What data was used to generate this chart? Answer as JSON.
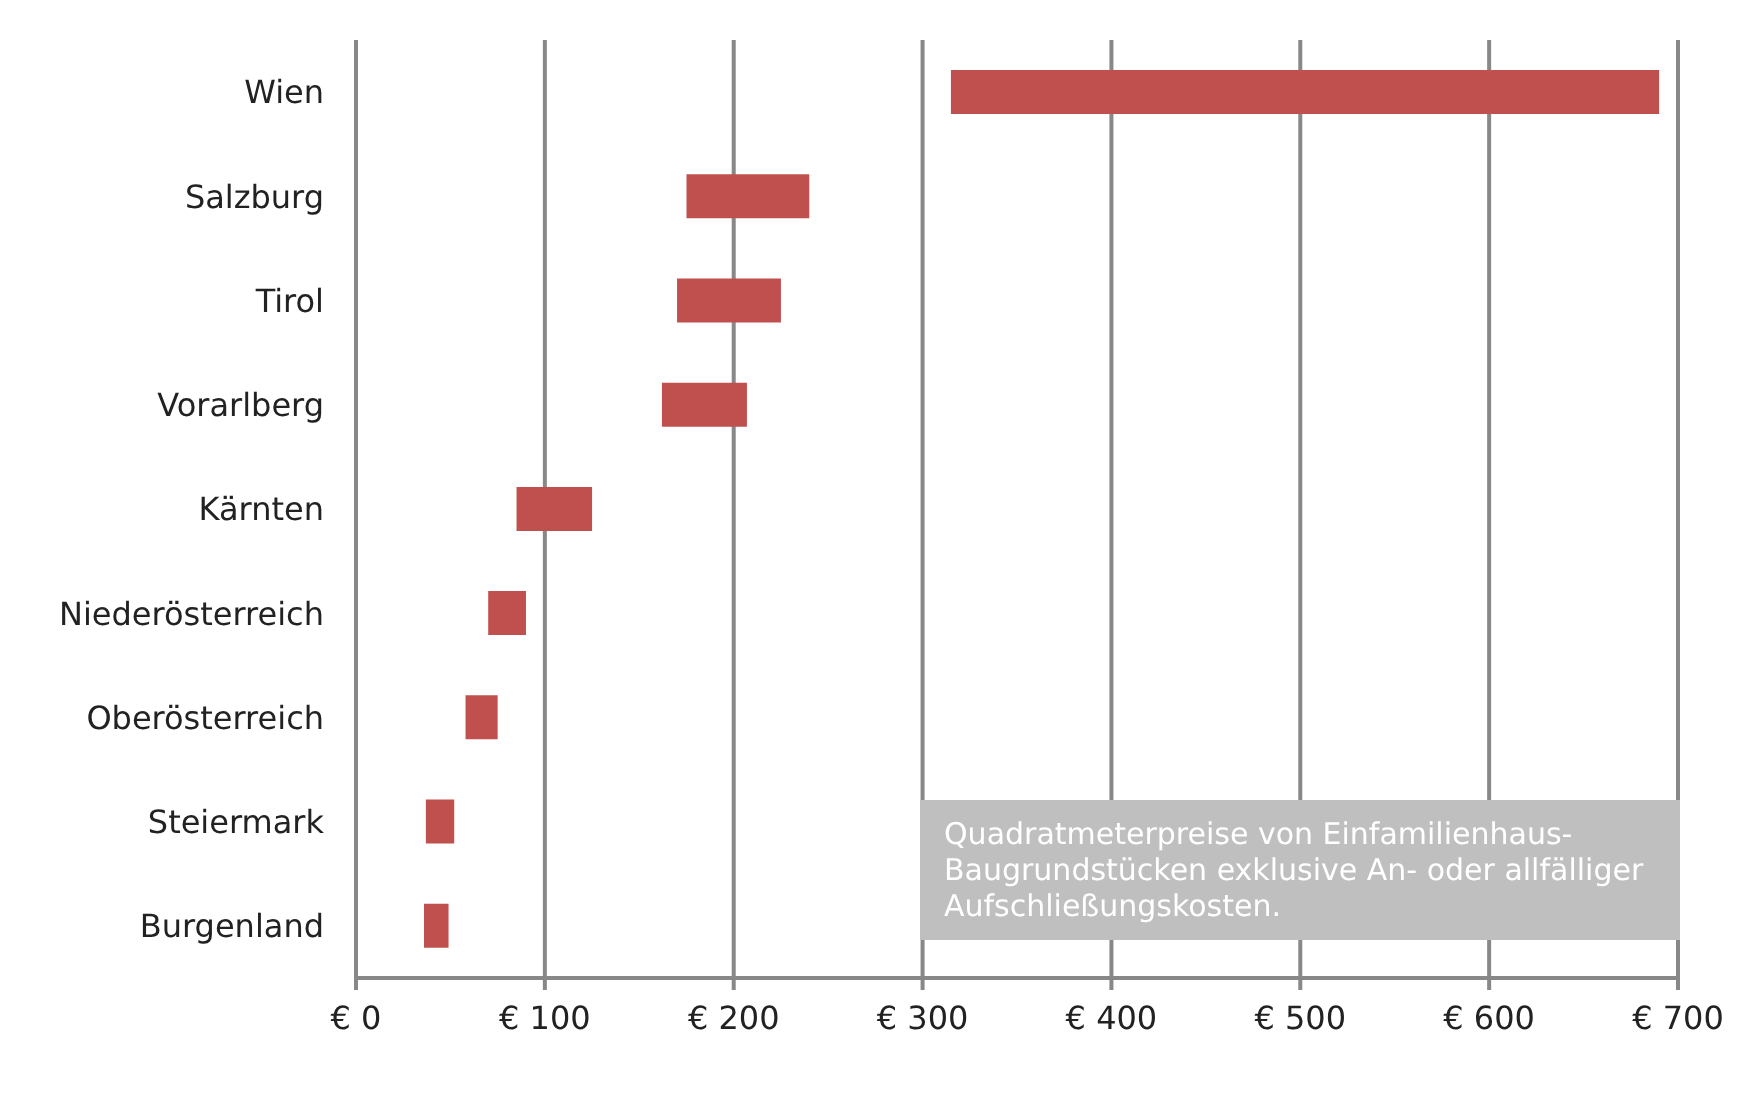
{
  "chart_data": {
    "type": "bar",
    "orientation": "horizontal",
    "categories": [
      "Wien",
      "Salzburg",
      "Tirol",
      "Vorarlberg",
      "Kärnten",
      "Niederösterreich",
      "Oberösterreich",
      "Steiermark",
      "Burgenland"
    ],
    "base": [
      315,
      175,
      170,
      162,
      85,
      70,
      58,
      37,
      36
    ],
    "values": [
      375,
      65,
      55,
      45,
      40,
      20,
      17,
      15,
      13
    ],
    "color": "#c0504d",
    "xlim": [
      0,
      700
    ],
    "xticks": [
      {
        "value": 0,
        "label": "€ 0"
      },
      {
        "value": 100,
        "label": "€ 100"
      },
      {
        "value": 200,
        "label": "€ 200"
      },
      {
        "value": 300,
        "label": "€ 300"
      },
      {
        "value": 400,
        "label": "€ 400"
      },
      {
        "value": 500,
        "label": "€ 500"
      },
      {
        "value": 600,
        "label": "€ 600"
      },
      {
        "value": 700,
        "label": "€ 700"
      }
    ],
    "grid": "x",
    "annotations": [
      "Quadratmeterpreise von Einfamilienhaus-Baugrundstücken exklusive An- oder allfälliger Aufschließungskosten."
    ]
  }
}
